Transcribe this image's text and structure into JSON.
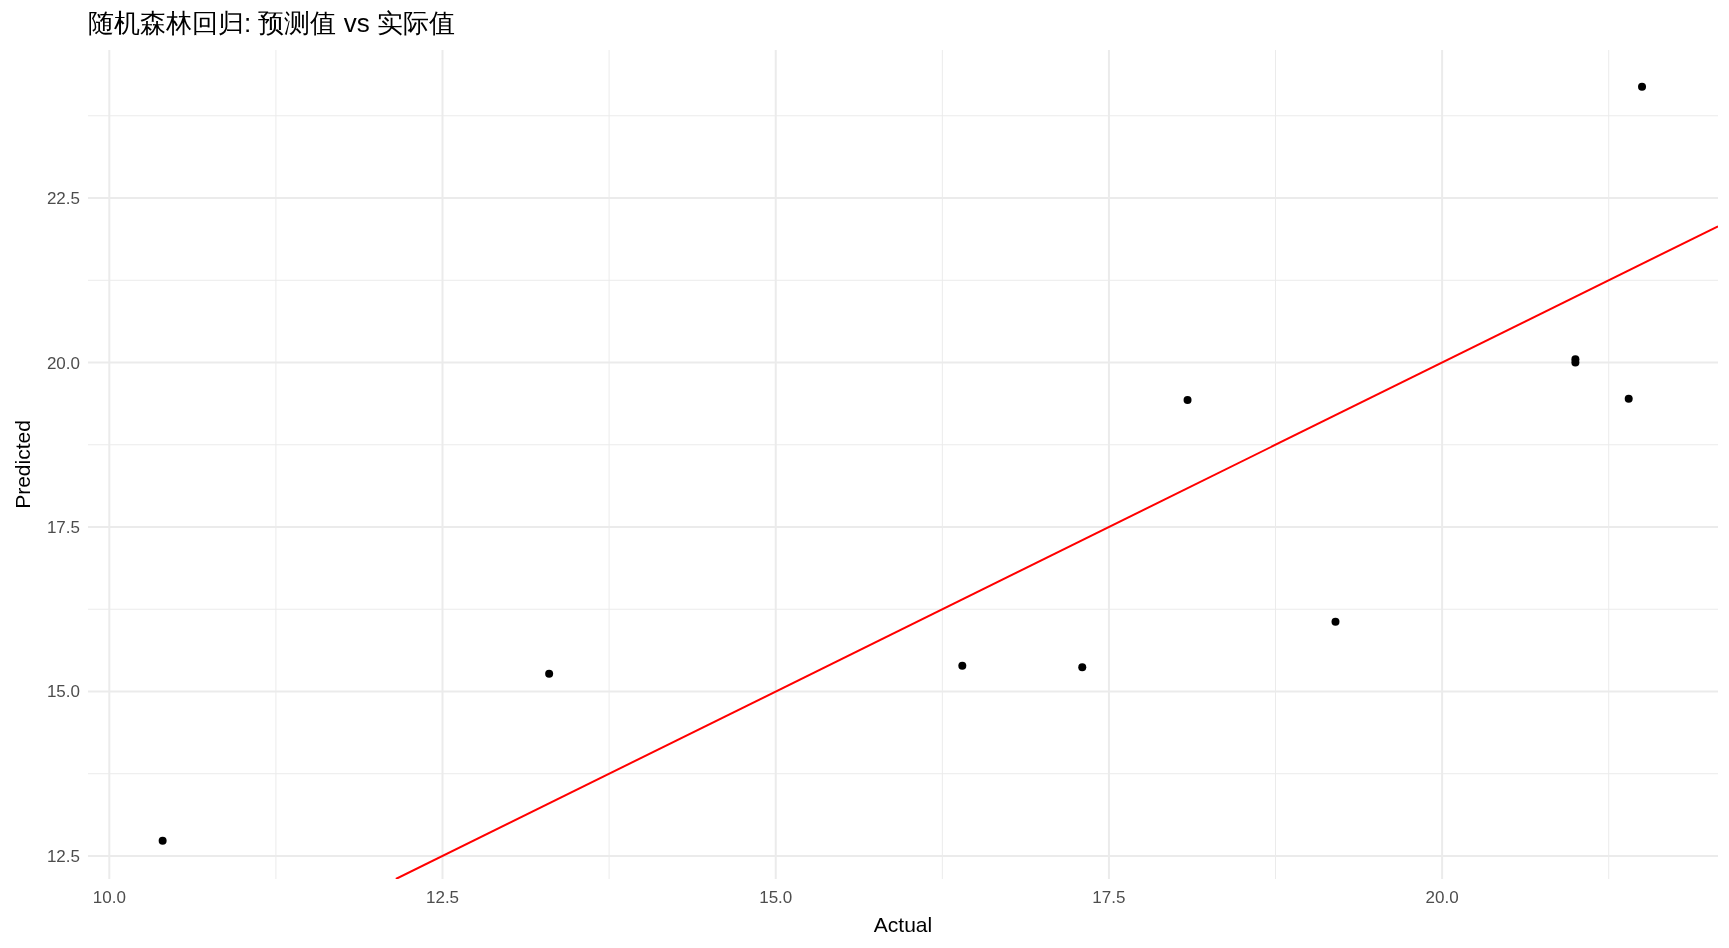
{
  "chart_data": {
    "type": "scatter",
    "title": "随机森林回归: 预测值 vs 实际值",
    "xlabel": "Actual",
    "ylabel": "Predicted",
    "xlim": [
      9.84,
      22.07
    ],
    "ylim": [
      12.15,
      24.75
    ],
    "xticks": [
      {
        "value": 10,
        "label": "10.0"
      },
      12.5,
      {
        "value": 15,
        "label": "15.0"
      },
      17.5,
      {
        "value": 20,
        "label": "20.0"
      }
    ],
    "yticks": [
      12.5,
      {
        "value": 15,
        "label": "15.0"
      },
      17.5,
      {
        "value": 20,
        "label": "20.0"
      },
      22.5
    ],
    "grid": true,
    "series": [
      {
        "color": "#000000",
        "marker": "circle",
        "x": [
          10.4,
          13.3,
          16.4,
          17.3,
          18.09,
          19.2,
          21.0,
          21.0,
          21.4,
          21.5
        ],
        "values": [
          12.73,
          15.27,
          15.39,
          15.37,
          19.43,
          16.06,
          20.0,
          20.05,
          19.45,
          24.19
        ]
      },
      {
        "type": "line",
        "color": "#ff0000",
        "x": [
          12.15,
          22.07
        ],
        "values": [
          12.15,
          22.07
        ]
      }
    ]
  }
}
